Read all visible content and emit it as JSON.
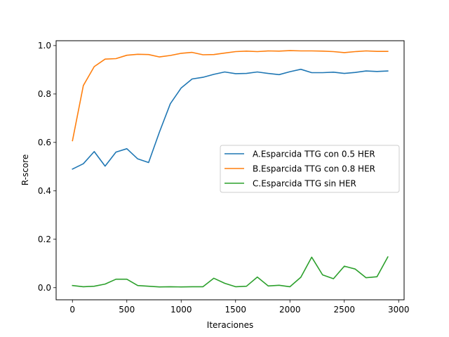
{
  "chart_data": {
    "type": "line",
    "title": "",
    "xlabel": "Iteraciones",
    "ylabel": "R-score",
    "xlim": [
      -150,
      3050
    ],
    "ylim": [
      -0.05,
      1.02
    ],
    "xticks": [
      0,
      500,
      1000,
      1500,
      2000,
      2500,
      3000
    ],
    "xtick_labels": [
      "0",
      "500",
      "1000",
      "1500",
      "2000",
      "2500",
      "3000"
    ],
    "yticks": [
      0.0,
      0.2,
      0.4,
      0.6,
      0.8,
      1.0
    ],
    "ytick_labels": [
      "0.0",
      "0.2",
      "0.4",
      "0.6",
      "0.8",
      "1.0"
    ],
    "grid": false,
    "legend_position": "center-right",
    "x": [
      0,
      100,
      200,
      300,
      400,
      500,
      600,
      700,
      800,
      900,
      1000,
      1100,
      1200,
      1300,
      1400,
      1500,
      1600,
      1700,
      1800,
      1900,
      2000,
      2100,
      2200,
      2300,
      2400,
      2500,
      2600,
      2700,
      2800,
      2900
    ],
    "series": [
      {
        "name": "A.Esparcida TTG con 0.5 HER",
        "color": "#1f77b4",
        "values": [
          0.49,
          0.512,
          0.562,
          0.502,
          0.56,
          0.574,
          0.532,
          0.517,
          0.643,
          0.76,
          0.825,
          0.862,
          0.869,
          0.881,
          0.891,
          0.884,
          0.885,
          0.891,
          0.885,
          0.88,
          0.892,
          0.902,
          0.888,
          0.888,
          0.89,
          0.885,
          0.889,
          0.895,
          0.893,
          0.895
        ]
      },
      {
        "name": "B.Esparcida TTG con 0.8 HER",
        "color": "#ff7f0e",
        "values": [
          0.607,
          0.835,
          0.913,
          0.944,
          0.946,
          0.96,
          0.964,
          0.963,
          0.953,
          0.959,
          0.968,
          0.972,
          0.962,
          0.963,
          0.969,
          0.975,
          0.977,
          0.975,
          0.978,
          0.977,
          0.979,
          0.978,
          0.978,
          0.977,
          0.975,
          0.971,
          0.975,
          0.978,
          0.976,
          0.976
        ]
      },
      {
        "name": "C.Esparcida TTG sin HER",
        "color": "#2ca02c",
        "values": [
          0.009,
          0.004,
          0.006,
          0.015,
          0.035,
          0.035,
          0.009,
          0.006,
          0.003,
          0.004,
          0.003,
          0.004,
          0.004,
          0.039,
          0.018,
          0.004,
          0.006,
          0.044,
          0.007,
          0.01,
          0.004,
          0.043,
          0.126,
          0.053,
          0.037,
          0.089,
          0.077,
          0.041,
          0.045,
          0.127
        ]
      }
    ]
  }
}
